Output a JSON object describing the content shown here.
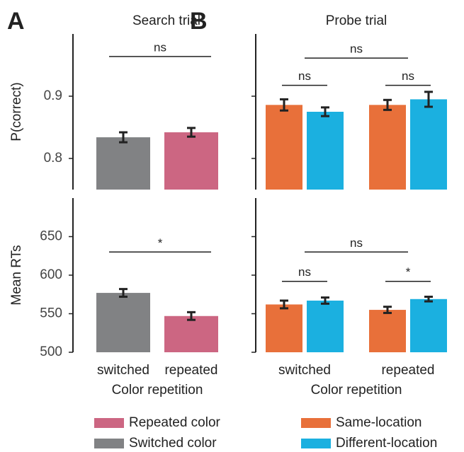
{
  "chart_data": [
    {
      "type": "bar",
      "panel": "A",
      "title": "Search trial",
      "ylabel": "P(correct)",
      "values": [
        0.834,
        0.842
      ],
      "errors": [
        0.008,
        0.007
      ],
      "colors": [
        "#818284",
        "#cc6682"
      ],
      "ylim": [
        0.75,
        1.0
      ],
      "yticks": [
        0.8,
        0.9
      ],
      "annotations": [
        {
          "text": "ns"
        }
      ]
    },
    {
      "type": "bar",
      "ylabel": "Mean RTs",
      "xlabel": "Color repetition",
      "categories": [
        "switched",
        "repeated"
      ],
      "values": [
        577,
        547
      ],
      "errors": [
        5,
        5
      ],
      "colors": [
        "#818284",
        "#cc6682"
      ],
      "ylim": [
        500,
        700
      ],
      "yticks": [
        500,
        550,
        600,
        650
      ],
      "annotations": [
        {
          "text": "*"
        }
      ],
      "legend": [
        {
          "name": "Repeated color",
          "color": "#cc6682"
        },
        {
          "name": "Switched color",
          "color": "#818284"
        }
      ]
    },
    {
      "type": "grouped_bar",
      "panel": "B",
      "title": "Probe trial",
      "series": [
        {
          "color": "#e8703a",
          "values": [
            0.886,
            0.886
          ],
          "errors": [
            0.009,
            0.008
          ]
        },
        {
          "color": "#1bb0e0",
          "values": [
            0.875,
            0.895
          ],
          "errors": [
            0.007,
            0.012
          ]
        }
      ],
      "ylim": [
        0.75,
        1.0
      ],
      "yticks": [
        0.8,
        0.9
      ],
      "annotations": [
        {
          "text": "ns",
          "group": 0
        },
        {
          "text": "ns",
          "group": 1
        },
        {
          "text": "ns",
          "group": "all"
        }
      ]
    },
    {
      "type": "grouped_bar",
      "xlabel": "Color repetition",
      "categories": [
        "switched",
        "repeated"
      ],
      "series": [
        {
          "name": "Same-location",
          "color": "#e8703a",
          "values": [
            562,
            555
          ],
          "errors": [
            5,
            4
          ]
        },
        {
          "name": "Different-location",
          "color": "#1bb0e0",
          "values": [
            567,
            569
          ],
          "errors": [
            4,
            3
          ]
        }
      ],
      "ylim": [
        500,
        700
      ],
      "yticks": [
        500,
        550,
        600,
        650
      ],
      "annotations": [
        {
          "text": "ns",
          "group": 0
        },
        {
          "text": "*",
          "group": 1
        },
        {
          "text": "ns",
          "group": "all"
        }
      ]
    }
  ]
}
